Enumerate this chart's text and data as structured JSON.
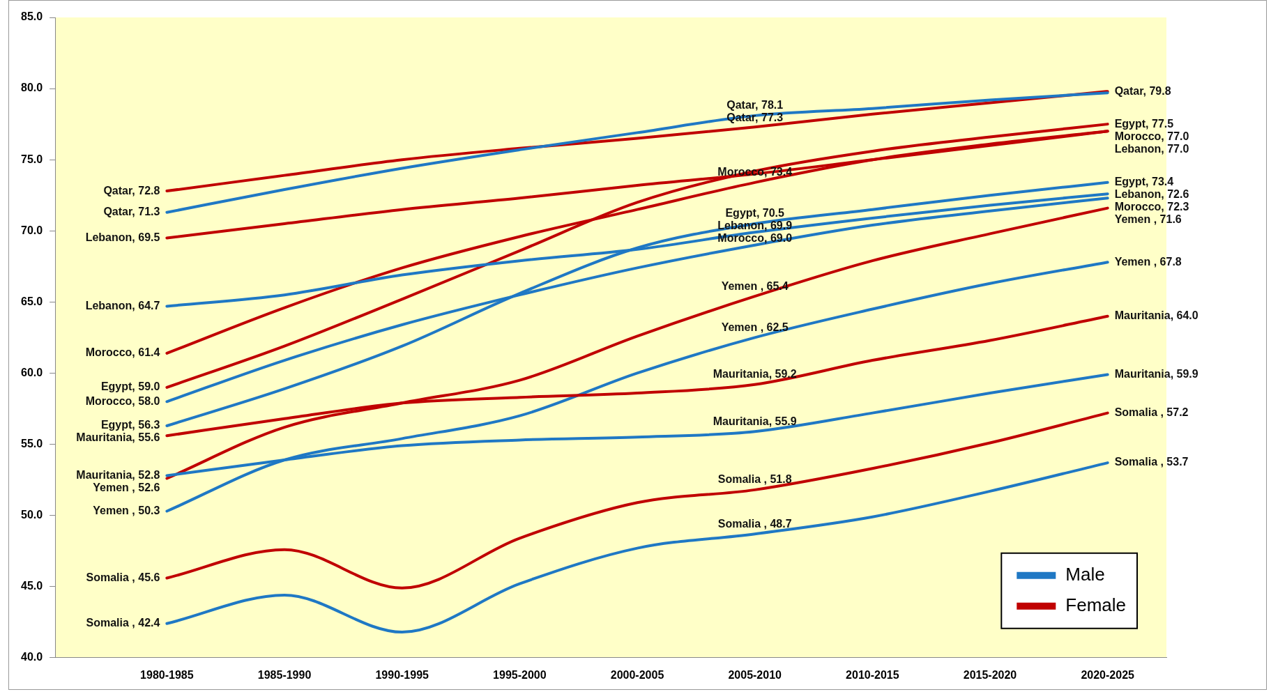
{
  "chart_data": {
    "type": "line",
    "categories": [
      "1980-1985",
      "1985-1990",
      "1990-1995",
      "1995-2000",
      "2000-2005",
      "2005-2010",
      "2010-2015",
      "2015-2020",
      "2020-2025"
    ],
    "ylim": [
      40,
      85
    ],
    "yticks": [
      {
        "value": 40,
        "label": "40.0"
      },
      {
        "value": 45,
        "label": "45.0"
      },
      {
        "value": 50,
        "label": "50.0"
      },
      {
        "value": 55,
        "label": "55.0"
      },
      {
        "value": 60,
        "label": "60.0"
      },
      {
        "value": 65,
        "label": "65.0"
      },
      {
        "value": 70,
        "label": "70.0"
      },
      {
        "value": 75,
        "label": "75.0"
      },
      {
        "value": 80,
        "label": "80.0"
      },
      {
        "value": 85,
        "label": "85.0"
      }
    ],
    "grid": false,
    "legend": "bottom right",
    "marker": "none",
    "line_style": "solid",
    "series": [
      {
        "name": "Male",
        "color": "#1f78c4",
        "values": [
          71.3,
          72.9,
          74.4,
          75.7,
          76.9,
          78.1,
          78.6,
          79.2,
          79.7
        ]
      },
      {
        "name": "Female",
        "color": "#c00000",
        "values": [
          72.8,
          73.9,
          75.0,
          75.8,
          76.5,
          77.3,
          78.2,
          79.0,
          79.8
        ]
      },
      {
        "color": "#1f78c4",
        "values": [
          64.7,
          65.5,
          66.9,
          67.9,
          68.7,
          69.9,
          70.9,
          71.8,
          72.6
        ]
      },
      {
        "color": "#c00000",
        "values": [
          69.5,
          70.5,
          71.5,
          72.3,
          73.2,
          74.0,
          75.0,
          76.0,
          77.0
        ]
      },
      {
        "color": "#1f78c4",
        "values": [
          58.0,
          60.9,
          63.4,
          65.5,
          67.4,
          69.0,
          70.4,
          71.4,
          72.3
        ]
      },
      {
        "color": "#c00000",
        "values": [
          61.4,
          64.6,
          67.4,
          69.6,
          71.5,
          73.4,
          75.0,
          76.1,
          77.0
        ]
      },
      {
        "color": "#1f78c4",
        "values": [
          56.3,
          58.9,
          61.9,
          65.6,
          68.8,
          70.5,
          71.5,
          72.5,
          73.4
        ]
      },
      {
        "color": "#c00000",
        "values": [
          59.0,
          61.9,
          65.2,
          68.6,
          72.0,
          74.2,
          75.6,
          76.6,
          77.5
        ]
      },
      {
        "color": "#1f78c4",
        "values": [
          52.8,
          53.9,
          54.9,
          55.3,
          55.5,
          55.9,
          57.2,
          58.6,
          59.9
        ]
      },
      {
        "color": "#c00000",
        "values": [
          55.6,
          56.8,
          57.9,
          58.3,
          58.6,
          59.2,
          60.9,
          62.3,
          64.0
        ]
      },
      {
        "color": "#1f78c4",
        "values": [
          50.3,
          53.9,
          55.4,
          57.0,
          60.0,
          62.5,
          64.5,
          66.3,
          67.8
        ]
      },
      {
        "color": "#c00000",
        "values": [
          52.6,
          56.2,
          57.9,
          59.5,
          62.6,
          65.4,
          67.9,
          69.8,
          71.6
        ]
      },
      {
        "color": "#1f78c4",
        "values": [
          42.4,
          44.4,
          41.8,
          45.2,
          47.7,
          48.7,
          49.9,
          51.7,
          53.7
        ]
      },
      {
        "color": "#c00000",
        "values": [
          45.6,
          47.6,
          44.9,
          48.4,
          50.9,
          51.8,
          53.3,
          55.1,
          57.2
        ]
      }
    ],
    "annotations": [
      {
        "text": "Qatar, 72.8",
        "x": "1980-1985",
        "y": 72.8
      },
      {
        "text": "Qatar, 71.3",
        "x": "1980-1985",
        "y": 71.3
      },
      {
        "text": "Lebanon, 69.5",
        "x": "1980-1985",
        "y": 69.5
      },
      {
        "text": "Lebanon, 64.7",
        "x": "1980-1985",
        "y": 64.7
      },
      {
        "text": "Morocco, 61.4",
        "x": "1980-1985",
        "y": 61.4
      },
      {
        "text": "Egypt, 59.0",
        "x": "1980-1985",
        "y": 59.0
      },
      {
        "text": "Morocco, 58.0",
        "x": "1980-1985",
        "y": 58.0
      },
      {
        "text": "Egypt, 56.3",
        "x": "1980-1985",
        "y": 56.3
      },
      {
        "text": "Mauritania, 55.6",
        "x": "1980-1985",
        "y": 55.6
      },
      {
        "text": "Mauritania, 52.8",
        "x": "1980-1985",
        "y": 52.8
      },
      {
        "text": "Yemen , 52.6",
        "x": "1980-1985",
        "y": 52.6
      },
      {
        "text": "Yemen , 50.3",
        "x": "1980-1985",
        "y": 50.3
      },
      {
        "text": "Somalia , 45.6",
        "x": "1980-1985",
        "y": 45.6
      },
      {
        "text": "Somalia , 42.4",
        "x": "1980-1985",
        "y": 42.4
      },
      {
        "text": "Qatar, 78.1",
        "x": "2005-2010",
        "y": 78.1
      },
      {
        "text": "Qatar, 77.3",
        "x": "2005-2010",
        "y": 77.3
      },
      {
        "text": "Morocco, 73.4",
        "x": "2005-2010",
        "y": 73.4
      },
      {
        "text": "Egypt, 70.5",
        "x": "2005-2010",
        "y": 70.5
      },
      {
        "text": "Lebanon, 69.9",
        "x": "2005-2010",
        "y": 69.9
      },
      {
        "text": "Morocco, 69.0",
        "x": "2005-2010",
        "y": 69.0
      },
      {
        "text": "Yemen , 65.4",
        "x": "2005-2010",
        "y": 65.4
      },
      {
        "text": "Yemen , 62.5",
        "x": "2005-2010",
        "y": 62.5
      },
      {
        "text": "Mauritania, 59.2",
        "x": "2005-2010",
        "y": 59.2
      },
      {
        "text": "Mauritania, 55.9",
        "x": "2005-2010",
        "y": 55.9
      },
      {
        "text": "Somalia , 51.8",
        "x": "2005-2010",
        "y": 51.8
      },
      {
        "text": "Somalia , 48.7",
        "x": "2005-2010",
        "y": 48.7
      },
      {
        "text": "Qatar, 79.8",
        "x": "2020-2025",
        "y": 79.8
      },
      {
        "text": "Egypt, 77.5",
        "x": "2020-2025",
        "y": 77.5
      },
      {
        "text": "Morocco, 77.0",
        "x": "2020-2025",
        "y": 77.0
      },
      {
        "text": "Lebanon, 77.0",
        "x": "2020-2025",
        "y": 77.0
      },
      {
        "text": "Egypt, 73.4",
        "x": "2020-2025",
        "y": 73.4
      },
      {
        "text": "Lebanon, 72.6",
        "x": "2020-2025",
        "y": 72.6
      },
      {
        "text": "Morocco, 72.3",
        "x": "2020-2025",
        "y": 72.3
      },
      {
        "text": "Yemen , 71.6",
        "x": "2020-2025",
        "y": 71.6
      },
      {
        "text": "Yemen , 67.8",
        "x": "2020-2025",
        "y": 67.8
      },
      {
        "text": "Mauritania, 64.0",
        "x": "2020-2025",
        "y": 64.0
      },
      {
        "text": "Mauritania, 59.9",
        "x": "2020-2025",
        "y": 59.9
      },
      {
        "text": "Somalia , 57.2",
        "x": "2020-2025",
        "y": 57.2
      },
      {
        "text": "Somalia , 53.7",
        "x": "2020-2025",
        "y": 53.7
      }
    ]
  }
}
